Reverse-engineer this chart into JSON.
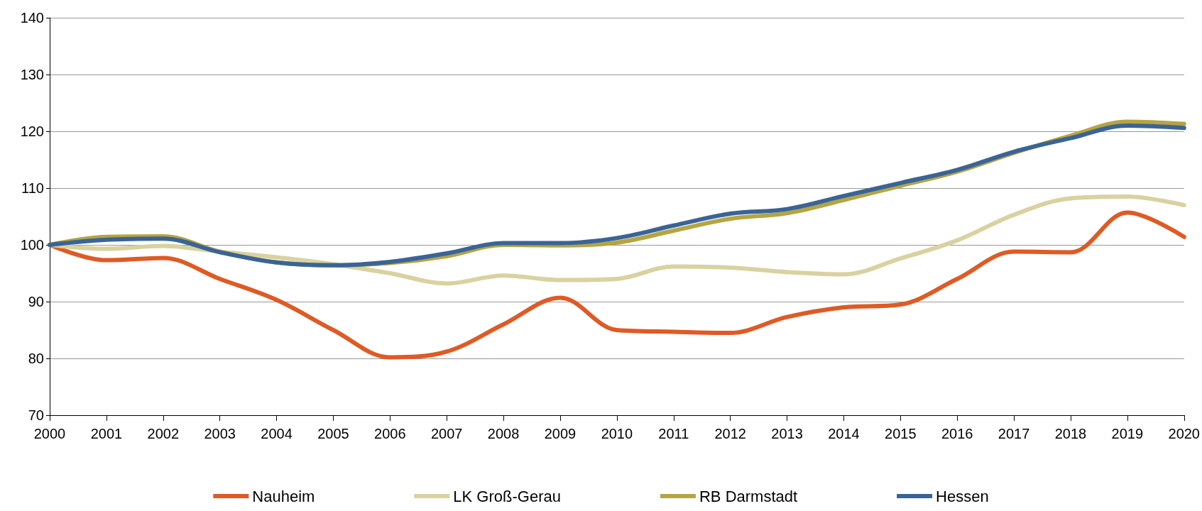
{
  "chart_data": {
    "type": "line",
    "categories": [
      "2000",
      "2001",
      "2002",
      "2003",
      "2004",
      "2005",
      "2006",
      "2007",
      "2008",
      "2009",
      "2010",
      "2011",
      "2012",
      "2013",
      "2014",
      "2015",
      "2016",
      "2017",
      "2018",
      "2019",
      "2020"
    ],
    "series": [
      {
        "name": "Nauheim",
        "color": "#e05a24",
        "values": [
          100,
          97.3,
          97.7,
          94,
          90.3,
          85,
          80.2,
          81.2,
          86,
          90.7,
          85,
          84.7,
          84.5,
          87.3,
          89,
          89.5,
          94,
          98.8,
          98.7,
          105.7,
          101.4
        ]
      },
      {
        "name": "LK Groß-Gerau",
        "color": "#d9d2a0",
        "values": [
          100,
          99.3,
          99.8,
          98.8,
          97.8,
          96.6,
          95,
          93.2,
          94.6,
          93.8,
          94,
          96.2,
          96,
          95.2,
          94.8,
          97.6,
          100.8,
          105.3,
          108.2,
          108.5,
          107
        ]
      },
      {
        "name": "RB Darmstadt",
        "color": "#b5a542",
        "values": [
          100,
          101.4,
          101.5,
          98.8,
          96.9,
          96.4,
          96.8,
          98,
          100,
          99.9,
          100.4,
          102.5,
          104.6,
          105.6,
          107.9,
          110.4,
          112.9,
          116.2,
          119.2,
          121.7,
          121.3
        ]
      },
      {
        "name": "Hessen",
        "color": "#3a6497",
        "values": [
          100,
          100.9,
          101.1,
          98.7,
          96.9,
          96.4,
          97,
          98.5,
          100.3,
          100.3,
          101.2,
          103.4,
          105.5,
          106.3,
          108.6,
          110.9,
          113.2,
          116.4,
          118.8,
          121,
          120.6
        ]
      }
    ],
    "ylim": [
      70,
      140
    ],
    "yticks": [
      70,
      80,
      90,
      100,
      110,
      120,
      130,
      140
    ],
    "grid": "y",
    "legend": "bottom",
    "marker": "none",
    "line_style": "solid"
  }
}
